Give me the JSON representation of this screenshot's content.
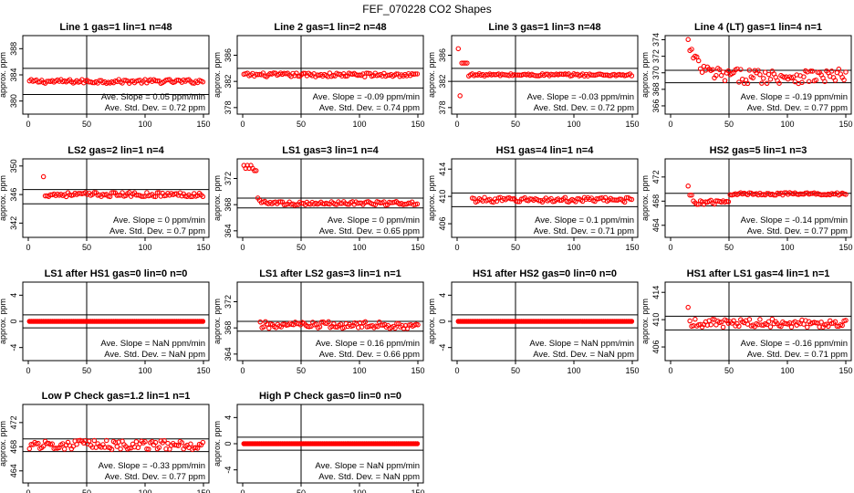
{
  "figure": {
    "title": "FEF_070228  CO2 Shapes"
  },
  "colors": {
    "points": "#ff0000",
    "axes": "#000000",
    "background": "#ffffff"
  },
  "chart_data": [
    {
      "type": "scatter",
      "title": "Line 1 gas=1 lin=1 n=48",
      "ylabel": "approx. ppm",
      "xlim": [
        0,
        150
      ],
      "ylim": [
        378,
        390
      ],
      "yticks": [
        380,
        384,
        388
      ],
      "xticks": [
        0,
        50,
        100,
        150
      ],
      "vline": 50,
      "hlines": [
        385,
        381
      ],
      "x_start": 1,
      "y_pattern": "flat",
      "y_base": 383,
      "y_noise": 0.3,
      "slope_label": "Ave. Slope =  0.05  ppm/min",
      "sd_label": "Ave. Std. Dev. =  0.72  ppm"
    },
    {
      "type": "scatter",
      "title": "Line 2 gas=1 lin=2 n=48",
      "ylabel": "approx. ppm",
      "xlim": [
        0,
        150
      ],
      "ylim": [
        377,
        389
      ],
      "yticks": [
        378,
        382,
        386
      ],
      "xticks": [
        0,
        50,
        100,
        150
      ],
      "vline": 50,
      "hlines": [
        384,
        381
      ],
      "x_start": 1,
      "y_pattern": "flat",
      "y_base": 383,
      "y_noise": 0.3,
      "slope_label": "Ave. Slope =  -0.09  ppm/min",
      "sd_label": "Ave. Std. Dev. =  0.74  ppm"
    },
    {
      "type": "scatter",
      "title": "Line 3 gas=1 lin=3 n=48",
      "ylabel": "approx. ppm",
      "xlim": [
        0,
        150
      ],
      "ylim": [
        377,
        389
      ],
      "yticks": [
        378,
        382,
        386
      ],
      "xticks": [
        0,
        50,
        100,
        150
      ],
      "vline": 50,
      "hlines": [
        384,
        382
      ],
      "x_start": 1,
      "y_pattern": "line3",
      "y_base": 383,
      "y_noise": 0.3,
      "slope_label": "Ave. Slope =  -0.03  ppm/min",
      "sd_label": "Ave. Std. Dev. =  0.72  ppm"
    },
    {
      "type": "scatter",
      "title": "Line 4 (LT) gas=1 lin=4 n=1",
      "ylabel": "approx. ppm",
      "xlim": [
        0,
        150
      ],
      "ylim": [
        365,
        374.5
      ],
      "yticks": [
        366,
        368,
        370,
        372,
        374
      ],
      "xticks": [
        0,
        50,
        100,
        150
      ],
      "vline": 50,
      "hlines": [
        370.3,
        368.8
      ],
      "x_start": 15,
      "y_pattern": "decay",
      "y_base": 369.6,
      "y_noise": 0.9,
      "decay_amp": 4,
      "slope_label": "Ave. Slope =  -0.19  ppm/min",
      "sd_label": "Ave. Std. Dev. =  0.77  ppm"
    },
    {
      "type": "scatter",
      "title": "LS2 gas=2 lin=1 n=4",
      "ylabel": "approx. ppm",
      "xlim": [
        0,
        150
      ],
      "ylim": [
        340,
        351
      ],
      "yticks": [
        342,
        346,
        350
      ],
      "xticks": [
        0,
        50,
        100,
        150
      ],
      "vline": 50,
      "hlines": [
        346.7,
        344.7
      ],
      "x_start": 13,
      "y_pattern": "spike",
      "y_base": 346,
      "y_noise": 0.3,
      "spike": 348.5,
      "slope_label": "Ave. Slope =  0  ppm/min",
      "sd_label": "Ave. Std. Dev. =  0.7  ppm"
    },
    {
      "type": "scatter",
      "title": "LS1 gas=3 lin=1 n=4",
      "ylabel": "approx. ppm",
      "xlim": [
        0,
        150
      ],
      "ylim": [
        363,
        375
      ],
      "yticks": [
        364,
        368,
        372
      ],
      "xticks": [
        0,
        50,
        100,
        150
      ],
      "vline": 50,
      "hlines": [
        369,
        367.5
      ],
      "x_start": 1,
      "y_pattern": "ls1",
      "y_base": 368.2,
      "y_noise": 0.3,
      "slope_label": "Ave. Slope =  0  ppm/min",
      "sd_label": "Ave. Std. Dev. =  0.65  ppm"
    },
    {
      "type": "scatter",
      "title": "HS1 gas=4 lin=1 n=4",
      "ylabel": "approx. ppm",
      "xlim": [
        0,
        150
      ],
      "ylim": [
        404,
        415.5
      ],
      "yticks": [
        406,
        410,
        414
      ],
      "xticks": [
        0,
        50,
        100,
        150
      ],
      "vline": 50,
      "hlines": [
        410.5,
        408.5
      ],
      "x_start": 13,
      "y_pattern": "flat",
      "y_base": 409.5,
      "y_noise": 0.35,
      "slope_label": "Ave. Slope =  0.1  ppm/min",
      "sd_label": "Ave. Std. Dev. =  0.71  ppm"
    },
    {
      "type": "scatter",
      "title": "HS2 gas=5 lin=1 n=3",
      "ylabel": "approx. ppm",
      "xlim": [
        0,
        150
      ],
      "ylim": [
        462,
        475
      ],
      "yticks": [
        464,
        468,
        472
      ],
      "xticks": [
        0,
        50,
        100,
        150
      ],
      "vline": 50,
      "hlines": [
        469.3,
        467.2
      ],
      "x_start": 15,
      "y_pattern": "hs2",
      "y_base": 468.4,
      "y_noise": 0.35,
      "slope_label": "Ave. Slope =  -0.14  ppm/min",
      "sd_label": "Ave. Std. Dev. =  0.77  ppm"
    },
    {
      "type": "scatter",
      "title": "LS1 after HS1 gas=0 lin=0 n=0",
      "ylabel": "approx. ppm",
      "xlim": [
        0,
        150
      ],
      "ylim": [
        -6,
        6
      ],
      "yticks": [
        -4,
        0,
        4
      ],
      "xticks": [
        0,
        50,
        100,
        150
      ],
      "vline": 50,
      "hlines": [
        1,
        -1
      ],
      "x_start": 1,
      "y_pattern": "zero",
      "y_base": 0,
      "y_noise": 0,
      "slope_label": "Ave. Slope =  NaN  ppm/min",
      "sd_label": "Ave. Std. Dev. =  NaN  ppm"
    },
    {
      "type": "scatter",
      "title": "LS1 after LS2 gas=3 lin=1 n=1",
      "ylabel": "approx. ppm",
      "xlim": [
        0,
        150
      ],
      "ylim": [
        363,
        375
      ],
      "yticks": [
        364,
        368,
        372
      ],
      "xticks": [
        0,
        50,
        100,
        150
      ],
      "vline": 50,
      "hlines": [
        369,
        367.5
      ],
      "x_start": 15,
      "y_pattern": "flat",
      "y_base": 368.4,
      "y_noise": 0.55,
      "slope_label": "Ave. Slope =  0.16  ppm/min",
      "sd_label": "Ave. Std. Dev. =  0.66  ppm"
    },
    {
      "type": "scatter",
      "title": "HS1 after HS2 gas=0 lin=0 n=0",
      "ylabel": "approx. ppm",
      "xlim": [
        0,
        150
      ],
      "ylim": [
        -6,
        6
      ],
      "yticks": [
        -4,
        0,
        4
      ],
      "xticks": [
        0,
        50,
        100,
        150
      ],
      "vline": 50,
      "hlines": [
        1,
        -1
      ],
      "x_start": 1,
      "y_pattern": "zero",
      "y_base": 0,
      "y_noise": 0,
      "slope_label": "Ave. Slope =  NaN  ppm/min",
      "sd_label": "Ave. Std. Dev. =  NaN  ppm"
    },
    {
      "type": "scatter",
      "title": "HS1 after LS1 gas=4 lin=1 n=1",
      "ylabel": "approx. ppm",
      "xlim": [
        0,
        150
      ],
      "ylim": [
        404,
        415.5
      ],
      "yticks": [
        406,
        410,
        414
      ],
      "xticks": [
        0,
        50,
        100,
        150
      ],
      "vline": 50,
      "hlines": [
        410.5,
        408.5
      ],
      "x_start": 15,
      "y_pattern": "spike",
      "y_base": 409.5,
      "y_noise": 0.6,
      "spike": 411.8,
      "slope_label": "Ave. Slope =  -0.16  ppm/min",
      "sd_label": "Ave. Std. Dev. =  0.71  ppm"
    },
    {
      "type": "scatter",
      "title": "Low P Check gas=1.2 lin=1 n=1",
      "ylabel": "approx. ppm",
      "xlim": [
        0,
        150
      ],
      "ylim": [
        462,
        475
      ],
      "yticks": [
        464,
        468,
        472
      ],
      "xticks": [
        0,
        50,
        100,
        150
      ],
      "vline": 50,
      "hlines": [
        469.3,
        467.2
      ],
      "x_start": 1,
      "y_pattern": "flat",
      "y_base": 468.3,
      "y_noise": 0.75,
      "slope_label": "Ave. Slope =  -0.33  ppm/min",
      "sd_label": "Ave. Std. Dev. =  0.77  ppm"
    },
    {
      "type": "scatter",
      "title": "High P Check gas=0 lin=0 n=0",
      "ylabel": "approx. ppm",
      "xlim": [
        0,
        150
      ],
      "ylim": [
        -6,
        6
      ],
      "yticks": [
        -4,
        0,
        4
      ],
      "xticks": [
        0,
        50,
        100,
        150
      ],
      "vline": 50,
      "hlines": [
        1,
        -1
      ],
      "x_start": 1,
      "y_pattern": "zero",
      "y_base": 0,
      "y_noise": 0,
      "slope_label": "Ave. Slope =  NaN  ppm/min",
      "sd_label": "Ave. Std. Dev. =  NaN  ppm"
    }
  ]
}
